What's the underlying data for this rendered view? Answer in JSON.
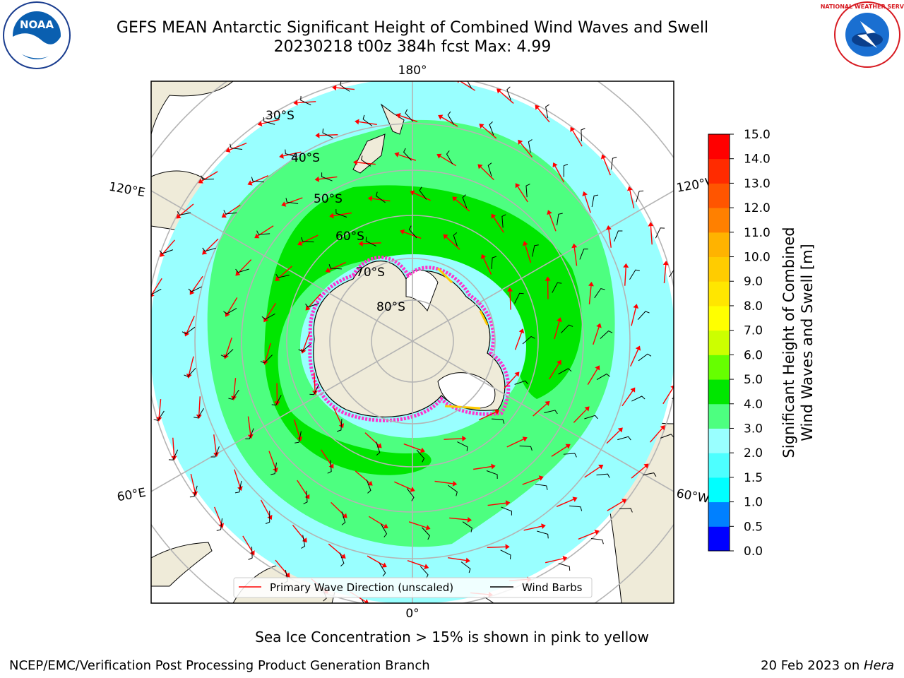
{
  "header": {
    "title_line1": "GEFS MEAN Antarctic Significant Height of Combined Wind Waves and Swell",
    "title_line2": "20230218 t00z 384h fcst   Max: 4.99",
    "left_logo_text": "NOAA",
    "right_logo_text": "NATIONAL WEATHER SERVICE"
  },
  "map": {
    "projection": "south polar stereographic",
    "lon_labels": {
      "top": "180°",
      "bottom": "0°",
      "left_upper": "120°E",
      "left_lower": "60°E",
      "right_upper": "120°W",
      "right_lower": "60°W"
    },
    "lat_labels": [
      "30°S",
      "40°S",
      "50°S",
      "60°S",
      "70°S",
      "80°S"
    ],
    "colors": {
      "land": "#efebd9",
      "ocean_low": "#99ffff",
      "waves_3_4": "#4dff80",
      "waves_4_5": "#00e600",
      "sea_ice": "#ff33cc",
      "arrow": "#ff0000",
      "barb": "#000000",
      "grid": "#b4b4b4"
    }
  },
  "legend": {
    "items": [
      {
        "label": "Primary Wave Direction (unscaled)",
        "color": "#ff0000"
      },
      {
        "label": "Wind Barbs",
        "color": "#000000"
      }
    ]
  },
  "colorbar": {
    "label_line1": "Significant Height of Combined",
    "label_line2": "Wind Waves and Swell [m]",
    "ticks": [
      "0.0",
      "0.5",
      "1.0",
      "1.5",
      "2.0",
      "3.0",
      "4.0",
      "5.0",
      "6.0",
      "7.0",
      "8.0",
      "9.0",
      "10.0",
      "11.0",
      "12.0",
      "13.0",
      "14.0",
      "15.0"
    ],
    "colors": [
      "#0000ff",
      "#0080ff",
      "#00ffff",
      "#4dffff",
      "#99ffff",
      "#4dff80",
      "#00e600",
      "#66ff00",
      "#ccff00",
      "#ffff00",
      "#ffe600",
      "#ffcc00",
      "#ffb300",
      "#ff8000",
      "#ff5500",
      "#ff2b00",
      "#ff0000"
    ]
  },
  "captions": {
    "sea_ice_note": "Sea Ice Concentration > 15% is shown in pink to yellow",
    "footer_left": "NCEP/EMC/Verification Post Processing Product Generation Branch",
    "footer_right_date": "20 Feb 2023 on ",
    "footer_right_host": "Hera"
  }
}
